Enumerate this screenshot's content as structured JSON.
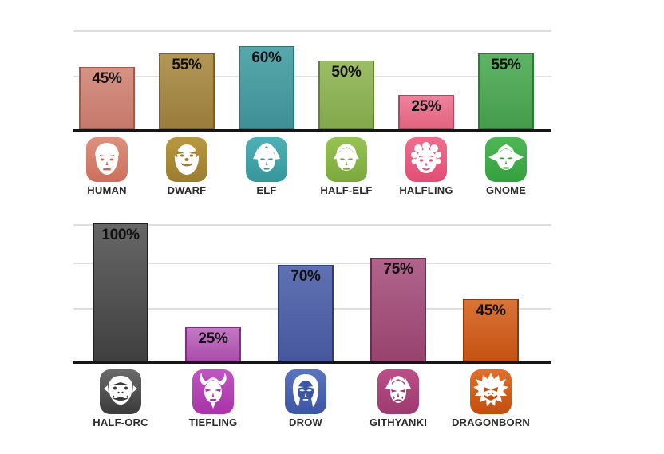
{
  "style": {
    "background": "#ffffff",
    "axis_color": "#161616",
    "gridline_color": "#dfdfdf",
    "value_text_color": "#111111",
    "category_text_color": "#2b2b2b"
  },
  "chart_data": [
    {
      "type": "bar",
      "position": "top-row",
      "categories": [
        "HUMAN",
        "DWARF",
        "ELF",
        "HALF-ELF",
        "HALFLING",
        "GNOME"
      ],
      "values": [
        45,
        55,
        60,
        50,
        25,
        55
      ],
      "ylim": [
        0,
        72
      ],
      "grid": "horizontal-light",
      "legend": "none",
      "value_label_format": "percent",
      "bars": [
        {
          "label": "HUMAN",
          "value": 45,
          "value_label": "45%",
          "icon": "human-face-icon",
          "glyph": "human",
          "bar_color_top": "#d69384",
          "bar_color_bottom": "#c5786a",
          "bar_border": "#a25b4b",
          "icon_color_top": "#dc917f",
          "icon_color_bottom": "#cc6f5b",
          "icon_line_color": "#c96a56"
        },
        {
          "label": "DWARF",
          "value": 55,
          "value_label": "55%",
          "icon": "dwarf-face-icon",
          "glyph": "dwarf",
          "bar_color_top": "#b29755",
          "bar_color_bottom": "#9a7c3c",
          "bar_border": "#776029",
          "icon_color_top": "#b8983f",
          "icon_color_bottom": "#9c7c2f",
          "icon_line_color": "#9c7c2f"
        },
        {
          "label": "ELF",
          "value": 60,
          "value_label": "60%",
          "icon": "elf-face-icon",
          "glyph": "elf",
          "bar_color_top": "#57a8ad",
          "bar_color_bottom": "#3f9096",
          "bar_border": "#2f7176",
          "icon_color_top": "#4fb0b5",
          "icon_color_bottom": "#36969c",
          "icon_line_color": "#36969c"
        },
        {
          "label": "HALF-ELF",
          "value": 50,
          "value_label": "50%",
          "icon": "half-elf-face-icon",
          "glyph": "halfelf",
          "bar_color_top": "#9cbc66",
          "bar_color_bottom": "#82a94b",
          "bar_border": "#647f36",
          "icon_color_top": "#97c353",
          "icon_color_bottom": "#7ba83d",
          "icon_line_color": "#7ba83d"
        },
        {
          "label": "HALFLING",
          "value": 25,
          "value_label": "25%",
          "icon": "halfling-face-icon",
          "glyph": "halfling",
          "bar_color_top": "#ee829c",
          "bar_color_bottom": "#e2637f",
          "bar_border": "#b24760",
          "icon_color_top": "#f06d8e",
          "icon_color_bottom": "#e14e74",
          "icon_line_color": "#e14e74"
        },
        {
          "label": "GNOME",
          "value": 55,
          "value_label": "55%",
          "icon": "gnome-face-icon",
          "glyph": "gnome",
          "bar_color_top": "#5eb464",
          "bar_color_bottom": "#459c4c",
          "bar_border": "#31793a",
          "icon_color_top": "#4eb755",
          "icon_color_bottom": "#35a03e",
          "icon_line_color": "#35a03e"
        }
      ]
    },
    {
      "type": "bar",
      "position": "bottom-row",
      "categories": [
        "HALF-ORC",
        "TIEFLING",
        "DROW",
        "GITHYANKI",
        "DRAGONBORN"
      ],
      "values": [
        100,
        25,
        70,
        75,
        45
      ],
      "ylim": [
        0,
        100
      ],
      "grid": "horizontal-light",
      "legend": "none",
      "value_label_format": "percent",
      "bars": [
        {
          "label": "HALF-ORC",
          "value": 100,
          "value_label": "100%",
          "icon": "half-orc-face-icon",
          "glyph": "halforc",
          "bar_color_top": "#666666",
          "bar_color_bottom": "#404040",
          "bar_border": "#1f1f1f",
          "icon_color_top": "#6b6b6b",
          "icon_color_bottom": "#3a3a3a",
          "icon_line_color": "#3a3a3a"
        },
        {
          "label": "TIEFLING",
          "value": 25,
          "value_label": "25%",
          "icon": "tiefling-face-icon",
          "glyph": "tiefling",
          "bar_color_top": "#c478c4",
          "bar_color_bottom": "#ab4dab",
          "bar_border": "#7e317e",
          "icon_color_top": "#c254c2",
          "icon_color_bottom": "#a834a8",
          "icon_line_color": "#a834a8"
        },
        {
          "label": "DROW",
          "value": 70,
          "value_label": "70%",
          "icon": "drow-face-icon",
          "glyph": "drow",
          "bar_color_top": "#5f71b2",
          "bar_color_bottom": "#47579e",
          "bar_border": "#2e3c74",
          "icon_color_top": "#5b74c0",
          "icon_color_bottom": "#3c55a4",
          "icon_line_color": "#3c55a4"
        },
        {
          "label": "GITHYANKI",
          "value": 75,
          "value_label": "75%",
          "icon": "githyanki-face-icon",
          "glyph": "githyanki",
          "bar_color_top": "#b0648b",
          "bar_color_bottom": "#97446e",
          "bar_border": "#6b2d4c",
          "icon_color_top": "#bb4f88",
          "icon_color_bottom": "#9c3a6e",
          "icon_line_color": "#9c3a6e"
        },
        {
          "label": "DRAGONBORN",
          "value": 45,
          "value_label": "45%",
          "icon": "dragonborn-face-icon",
          "glyph": "dragonborn",
          "bar_color_top": "#d97338",
          "bar_color_bottom": "#c55211",
          "bar_border": "#8c3a0a",
          "icon_color_top": "#e0702b",
          "icon_color_bottom": "#c24e0e",
          "icon_line_color": "#c24e0e"
        }
      ]
    }
  ]
}
